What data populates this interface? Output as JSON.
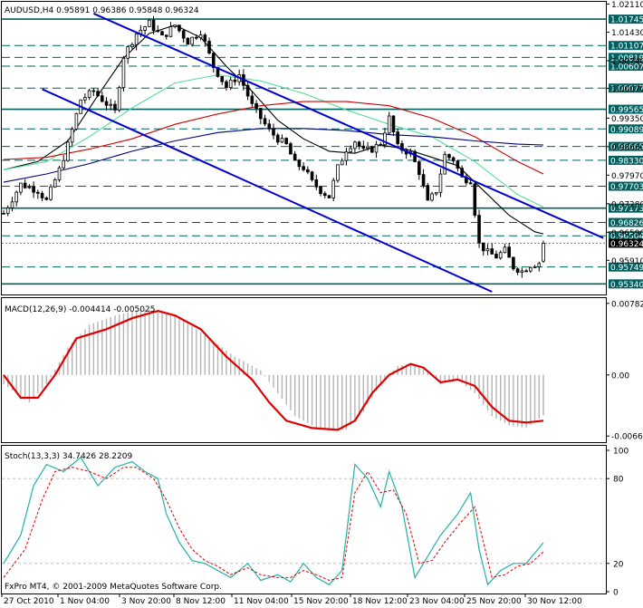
{
  "header": {
    "main": "AUDUSD,H4  0.95891 0.96386 0.95848 0.96324",
    "macd": "MACD(12,26,9) -0.004414 -0.005025",
    "stoch": "Stoch(13,3,3) 34.7426 28.2209",
    "copyright": "FxPro MT4, © 2001-2009 MetaQuotes Software Corp."
  },
  "colors": {
    "candle": "#000000",
    "channel": "#0000cc",
    "level": "#006060",
    "ma_black": "#000000",
    "ma_green": "#55dd99",
    "ma_red": "#cc0000",
    "ma_navy": "#000080",
    "macd_hist": "#b4b4b4",
    "macd_signal": "#e00000",
    "stoch_main": "#20b2aa",
    "stoch_signal": "#e00000"
  },
  "chart_data": [
    {
      "type": "candlestick",
      "symbol": "AUDUSD",
      "timeframe": "H4",
      "ohlc_last": {
        "open": 0.95891,
        "high": 0.96386,
        "low": 0.95848,
        "close": 0.96324
      },
      "ylim": [
        0.9515,
        1.0212
      ],
      "y_ticks": [
        "1.02110",
        "1.01430",
        "1.00740",
        "1.00070",
        "0.99350",
        "0.98660",
        "0.97970",
        "0.97280",
        "0.96590",
        "0.95910"
      ],
      "x_ticks": [
        "27 Oct 2010",
        "1 Nov 04:00",
        "3 Nov 20:00",
        "8 Nov 12:00",
        "11 Nov 04:00",
        "15 Nov 20:00",
        "18 Nov 12:00",
        "23 Nov 04:00",
        "25 Nov 20:00",
        "30 Nov 12:00"
      ],
      "horizontal_levels": [
        {
          "value": 1.01745,
          "label": "1.01745",
          "style": "solid"
        },
        {
          "value": 1.01107,
          "label": "1.01107",
          "style": "dashed"
        },
        {
          "value": 1.00819,
          "label": "1.00819",
          "style": "dashed"
        },
        {
          "value": 1.00607,
          "label": "1.00607",
          "style": "dashed"
        },
        {
          "value": 1.00077,
          "label": "1.00077",
          "style": "dashed"
        },
        {
          "value": 0.99565,
          "label": "0.99565",
          "style": "solid"
        },
        {
          "value": 0.99089,
          "label": "0.99089",
          "style": "dashed"
        },
        {
          "value": 0.98665,
          "label": "0.98665",
          "style": "dashed"
        },
        {
          "value": 0.9833,
          "label": "0.98330",
          "style": "dashed"
        },
        {
          "value": 0.97703,
          "label": "0.97703",
          "style": "dashed"
        },
        {
          "value": 0.97173,
          "label": "0.97173",
          "style": "solid"
        },
        {
          "value": 0.96826,
          "label": "0.96826",
          "style": "dashed"
        },
        {
          "value": 0.96504,
          "label": "0.96504",
          "style": "dashed"
        },
        {
          "value": 0.95749,
          "label": "0.95749",
          "style": "dashed"
        },
        {
          "value": 0.9534,
          "label": "0.95340",
          "style": "solid"
        }
      ],
      "current_price": 0.96324,
      "current_price_label": "0.96324",
      "trend_lines": [
        {
          "x1": 21,
          "y1": 1.0188,
          "x2": 140,
          "y2": 0.9645
        },
        {
          "x1": 9,
          "y1": 1.0005,
          "x2": 114,
          "y2": 0.9515
        }
      ],
      "close_path": [
        [
          0,
          0.9705
        ],
        [
          4,
          0.9775
        ],
        [
          8,
          0.976
        ],
        [
          10,
          0.9735
        ],
        [
          13,
          0.981
        ],
        [
          15,
          0.987
        ],
        [
          18,
          0.998
        ],
        [
          21,
          1.0
        ],
        [
          24,
          0.997
        ],
        [
          26,
          0.995
        ],
        [
          28,
          1.0085
        ],
        [
          31,
          1.014
        ],
        [
          34,
          1.0165
        ],
        [
          37,
          1.013
        ],
        [
          40,
          1.016
        ],
        [
          43,
          1.012
        ],
        [
          46,
          1.0145
        ],
        [
          49,
          1.006
        ],
        [
          52,
          1.001
        ],
        [
          55,
          1.004
        ],
        [
          58,
          0.9965
        ],
        [
          60,
          0.9935
        ],
        [
          62,
          0.9905
        ],
        [
          64,
          0.9885
        ],
        [
          66,
          0.987
        ],
        [
          68,
          0.9825
        ],
        [
          70,
          0.9815
        ],
        [
          72,
          0.978
        ],
        [
          74,
          0.976
        ],
        [
          76,
          0.9745
        ],
        [
          78,
          0.9815
        ],
        [
          80,
          0.986
        ],
        [
          82,
          0.988
        ],
        [
          84,
          0.9855
        ],
        [
          86,
          0.986
        ],
        [
          88,
          0.9875
        ],
        [
          90,
          0.9935
        ],
        [
          92,
          0.9865
        ],
        [
          95,
          0.985
        ],
        [
          97,
          0.9805
        ],
        [
          99,
          0.973
        ],
        [
          101,
          0.976
        ],
        [
          103,
          0.9845
        ],
        [
          105,
          0.9835
        ],
        [
          107,
          0.979
        ],
        [
          109,
          0.9785
        ],
        [
          111,
          0.963
        ],
        [
          113,
          0.961
        ],
        [
          115,
          0.96
        ],
        [
          117,
          0.9615
        ],
        [
          119,
          0.9575
        ],
        [
          121,
          0.9565
        ],
        [
          123,
          0.958
        ],
        [
          125,
          0.9585
        ],
        [
          126,
          0.9632
        ]
      ],
      "ma_black": [
        [
          0,
          0.981
        ],
        [
          8,
          0.983
        ],
        [
          15,
          0.988
        ],
        [
          22,
          0.999
        ],
        [
          28,
          1.008
        ],
        [
          34,
          1.014
        ],
        [
          40,
          1.016
        ],
        [
          46,
          1.013
        ],
        [
          52,
          1.006
        ],
        [
          58,
          1.0
        ],
        [
          64,
          0.993
        ],
        [
          70,
          0.9885
        ],
        [
          76,
          0.9855
        ],
        [
          82,
          0.985
        ],
        [
          88,
          0.987
        ],
        [
          94,
          0.986
        ],
        [
          100,
          0.984
        ],
        [
          106,
          0.982
        ],
        [
          112,
          0.976
        ],
        [
          118,
          0.97
        ],
        [
          124,
          0.966
        ],
        [
          126,
          0.9655
        ]
      ],
      "ma_green": [
        [
          0,
          0.981
        ],
        [
          10,
          0.983
        ],
        [
          20,
          0.989
        ],
        [
          30,
          0.996
        ],
        [
          40,
          1.002
        ],
        [
          50,
          1.004
        ],
        [
          60,
          1.0025
        ],
        [
          70,
          0.9995
        ],
        [
          80,
          0.9955
        ],
        [
          90,
          0.992
        ],
        [
          100,
          0.989
        ],
        [
          110,
          0.983
        ],
        [
          120,
          0.975
        ],
        [
          126,
          0.972
        ]
      ],
      "ma_red": [
        [
          0,
          0.9835
        ],
        [
          10,
          0.984
        ],
        [
          20,
          0.986
        ],
        [
          30,
          0.9885
        ],
        [
          40,
          0.992
        ],
        [
          50,
          0.9945
        ],
        [
          60,
          0.9965
        ],
        [
          70,
          0.9975
        ],
        [
          80,
          0.9975
        ],
        [
          90,
          0.9965
        ],
        [
          100,
          0.9935
        ],
        [
          110,
          0.989
        ],
        [
          120,
          0.983
        ],
        [
          126,
          0.98
        ]
      ],
      "ma_navy": [
        [
          0,
          0.978
        ],
        [
          10,
          0.98
        ],
        [
          20,
          0.9825
        ],
        [
          30,
          0.9855
        ],
        [
          40,
          0.988
        ],
        [
          50,
          0.99
        ],
        [
          60,
          0.991
        ],
        [
          70,
          0.991
        ],
        [
          80,
          0.9905
        ],
        [
          90,
          0.9895
        ],
        [
          100,
          0.989
        ],
        [
          110,
          0.988
        ],
        [
          120,
          0.9872
        ],
        [
          126,
          0.987
        ]
      ]
    },
    {
      "type": "bar+line",
      "name": "MACD(12,26,9)",
      "values_label": "-0.004414 -0.005025",
      "y_ticks": [
        {
          "value": 0.007824,
          "label": "0.007824"
        },
        {
          "value": 0.0,
          "label": "0.00"
        },
        {
          "value": -0.006676,
          "label": "-0.006676"
        }
      ],
      "ylim": [
        -0.00715,
        0.0082
      ],
      "histogram": [
        [
          0,
          -0.001
        ],
        [
          6,
          -0.003
        ],
        [
          10,
          -0.001
        ],
        [
          15,
          0.003
        ],
        [
          20,
          0.0055
        ],
        [
          26,
          0.0065
        ],
        [
          32,
          0.0072
        ],
        [
          37,
          0.007
        ],
        [
          42,
          0.006
        ],
        [
          48,
          0.004
        ],
        [
          54,
          0.002
        ],
        [
          60,
          0.0005
        ],
        [
          64,
          -0.002
        ],
        [
          68,
          -0.0045
        ],
        [
          74,
          -0.006
        ],
        [
          80,
          -0.006
        ],
        [
          84,
          -0.004
        ],
        [
          88,
          -0.001
        ],
        [
          92,
          0.001
        ],
        [
          95,
          0.0012
        ],
        [
          98,
          0.0008
        ],
        [
          102,
          -0.001
        ],
        [
          106,
          -0.0005
        ],
        [
          110,
          -0.002
        ],
        [
          114,
          -0.0045
        ],
        [
          118,
          -0.0055
        ],
        [
          122,
          -0.0058
        ],
        [
          126,
          -0.0044
        ]
      ],
      "signal": [
        [
          0,
          0.0
        ],
        [
          4,
          -0.0025
        ],
        [
          8,
          -0.0025
        ],
        [
          12,
          0.0
        ],
        [
          17,
          0.004
        ],
        [
          24,
          0.005
        ],
        [
          30,
          0.0062
        ],
        [
          36,
          0.007
        ],
        [
          40,
          0.0065
        ],
        [
          46,
          0.005
        ],
        [
          52,
          0.002
        ],
        [
          58,
          -0.0005
        ],
        [
          62,
          -0.003
        ],
        [
          66,
          -0.005
        ],
        [
          72,
          -0.0058
        ],
        [
          78,
          -0.006
        ],
        [
          82,
          -0.005
        ],
        [
          86,
          -0.002
        ],
        [
          90,
          0.0
        ],
        [
          95,
          0.0012
        ],
        [
          98,
          0.0008
        ],
        [
          102,
          -0.0008
        ],
        [
          106,
          -0.0005
        ],
        [
          110,
          -0.0012
        ],
        [
          114,
          -0.0035
        ],
        [
          118,
          -0.005
        ],
        [
          122,
          -0.0052
        ],
        [
          126,
          -0.005
        ]
      ]
    },
    {
      "type": "line",
      "name": "Stoch(13,3,3)",
      "values_label": "34.7426 28.2209",
      "y_ticks": [
        {
          "value": 100,
          "label": "100"
        },
        {
          "value": 80,
          "label": "80"
        },
        {
          "value": 20,
          "label": "20"
        },
        {
          "value": 0,
          "label": "0"
        }
      ],
      "ylim": [
        0,
        100
      ],
      "main": [
        [
          0,
          20
        ],
        [
          4,
          40
        ],
        [
          7,
          75
        ],
        [
          10,
          90
        ],
        [
          14,
          85
        ],
        [
          18,
          95
        ],
        [
          22,
          75
        ],
        [
          26,
          88
        ],
        [
          30,
          92
        ],
        [
          33,
          85
        ],
        [
          36,
          80
        ],
        [
          38,
          55
        ],
        [
          41,
          35
        ],
        [
          44,
          22
        ],
        [
          47,
          20
        ],
        [
          50,
          15
        ],
        [
          53,
          10
        ],
        [
          57,
          20
        ],
        [
          60,
          8
        ],
        [
          64,
          12
        ],
        [
          67,
          7
        ],
        [
          70,
          20
        ],
        [
          73,
          10
        ],
        [
          76,
          5
        ],
        [
          79,
          15
        ],
        [
          82,
          90
        ],
        [
          85,
          80
        ],
        [
          88,
          60
        ],
        [
          90,
          85
        ],
        [
          93,
          60
        ],
        [
          96,
          10
        ],
        [
          99,
          25
        ],
        [
          102,
          40
        ],
        [
          106,
          55
        ],
        [
          109,
          70
        ],
        [
          111,
          30
        ],
        [
          113,
          5
        ],
        [
          116,
          15
        ],
        [
          119,
          20
        ],
        [
          122,
          20
        ],
        [
          126,
          34.7
        ]
      ],
      "signal": [
        [
          0,
          10
        ],
        [
          5,
          30
        ],
        [
          9,
          65
        ],
        [
          12,
          85
        ],
        [
          16,
          88
        ],
        [
          20,
          85
        ],
        [
          24,
          80
        ],
        [
          28,
          88
        ],
        [
          31,
          88
        ],
        [
          35,
          80
        ],
        [
          38,
          65
        ],
        [
          41,
          45
        ],
        [
          44,
          30
        ],
        [
          47,
          22
        ],
        [
          50,
          18
        ],
        [
          53,
          12
        ],
        [
          57,
          17
        ],
        [
          60,
          12
        ],
        [
          64,
          10
        ],
        [
          67,
          10
        ],
        [
          70,
          15
        ],
        [
          73,
          12
        ],
        [
          76,
          8
        ],
        [
          79,
          10
        ],
        [
          82,
          70
        ],
        [
          85,
          85
        ],
        [
          88,
          70
        ],
        [
          91,
          72
        ],
        [
          94,
          55
        ],
        [
          97,
          20
        ],
        [
          100,
          22
        ],
        [
          103,
          35
        ],
        [
          107,
          50
        ],
        [
          110,
          60
        ],
        [
          112,
          35
        ],
        [
          114,
          10
        ],
        [
          117,
          12
        ],
        [
          120,
          18
        ],
        [
          123,
          20
        ],
        [
          126,
          28.2
        ]
      ]
    }
  ]
}
